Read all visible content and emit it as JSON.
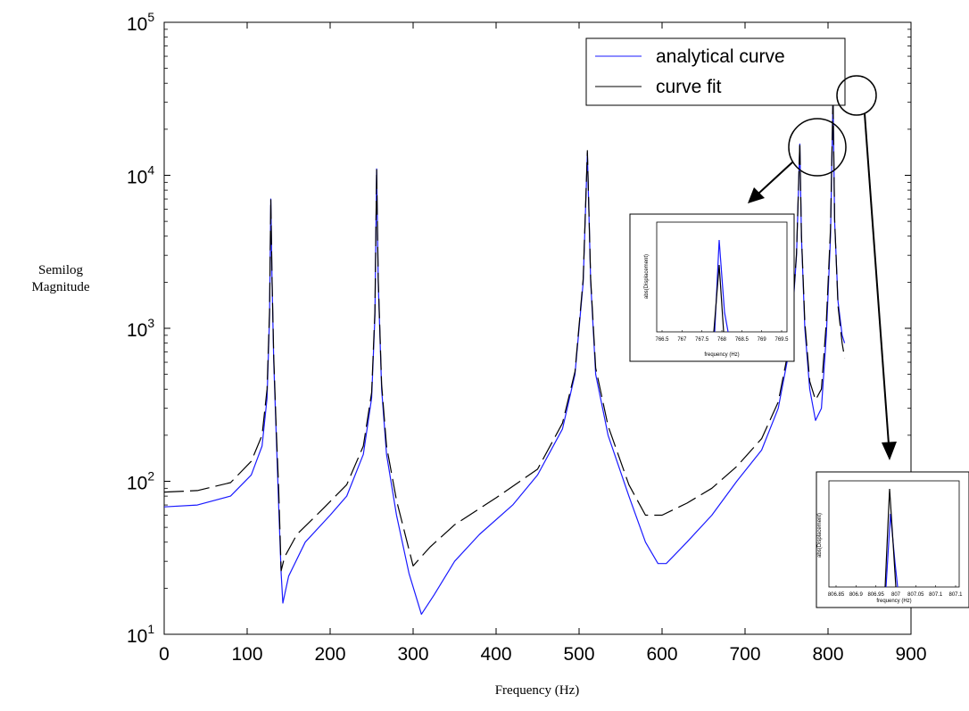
{
  "chart_data": {
    "type": "line",
    "title": "",
    "xlabel": "Frequency (Hz)",
    "ylabel_lines": [
      "Semilog",
      "Magnitude"
    ],
    "yscale": "log",
    "xlim": [
      0,
      900
    ],
    "ylim": [
      10,
      100000
    ],
    "xticks": [
      0,
      100,
      200,
      300,
      400,
      500,
      600,
      700,
      800,
      900
    ],
    "yticks": [
      {
        "base": "10",
        "exp": "1",
        "value": 10
      },
      {
        "base": "10",
        "exp": "2",
        "value": 100
      },
      {
        "base": "10",
        "exp": "3",
        "value": 1000
      },
      {
        "base": "10",
        "exp": "4",
        "value": 10000
      },
      {
        "base": "10",
        "exp": "5",
        "value": 100000
      }
    ],
    "grid": false,
    "legend_position": "top-right",
    "series": [
      {
        "name": "analytical curve",
        "color": "#1a1aff",
        "style": "solid",
        "points": [
          [
            0,
            68
          ],
          [
            40,
            70
          ],
          [
            80,
            80
          ],
          [
            105,
            110
          ],
          [
            118,
            170
          ],
          [
            124,
            350
          ],
          [
            127,
            1200
          ],
          [
            128.5,
            7000
          ],
          [
            130,
            2000
          ],
          [
            132,
            600
          ],
          [
            135,
            200
          ],
          [
            138,
            70
          ],
          [
            141,
            25
          ],
          [
            143,
            16
          ],
          [
            150,
            24
          ],
          [
            170,
            40
          ],
          [
            200,
            60
          ],
          [
            220,
            80
          ],
          [
            240,
            150
          ],
          [
            250,
            350
          ],
          [
            254,
            1200
          ],
          [
            256,
            11000
          ],
          [
            258,
            2000
          ],
          [
            262,
            400
          ],
          [
            268,
            150
          ],
          [
            280,
            60
          ],
          [
            295,
            25
          ],
          [
            310,
            13.5
          ],
          [
            325,
            18
          ],
          [
            350,
            30
          ],
          [
            380,
            45
          ],
          [
            420,
            70
          ],
          [
            450,
            110
          ],
          [
            480,
            220
          ],
          [
            495,
            500
          ],
          [
            505,
            2000
          ],
          [
            510,
            14000
          ],
          [
            514,
            2000
          ],
          [
            520,
            500
          ],
          [
            535,
            200
          ],
          [
            560,
            80
          ],
          [
            580,
            40
          ],
          [
            595,
            29
          ],
          [
            605,
            29
          ],
          [
            630,
            40
          ],
          [
            660,
            60
          ],
          [
            690,
            100
          ],
          [
            720,
            160
          ],
          [
            740,
            300
          ],
          [
            755,
            800
          ],
          [
            762,
            3000
          ],
          [
            766,
            16000
          ],
          [
            768,
            4000
          ],
          [
            772,
            1000
          ],
          [
            778,
            400
          ],
          [
            785,
            250
          ],
          [
            792,
            300
          ],
          [
            798,
            900
          ],
          [
            803,
            4000
          ],
          [
            806,
            32000
          ],
          [
            808,
            5000
          ],
          [
            812,
            1500
          ],
          [
            817,
            900
          ],
          [
            820,
            800
          ]
        ]
      },
      {
        "name": "curve fit",
        "color": "#000000",
        "style": "dashed",
        "points": [
          [
            0,
            85
          ],
          [
            40,
            87
          ],
          [
            80,
            98
          ],
          [
            105,
            135
          ],
          [
            118,
            200
          ],
          [
            124,
            400
          ],
          [
            127,
            1300
          ],
          [
            128.5,
            7000
          ],
          [
            130,
            2100
          ],
          [
            132,
            650
          ],
          [
            135,
            220
          ],
          [
            138,
            90
          ],
          [
            141,
            26
          ],
          [
            145,
            32
          ],
          [
            160,
            45
          ],
          [
            190,
            65
          ],
          [
            220,
            95
          ],
          [
            240,
            170
          ],
          [
            250,
            380
          ],
          [
            254,
            1300
          ],
          [
            256,
            11000
          ],
          [
            258,
            2100
          ],
          [
            262,
            430
          ],
          [
            268,
            170
          ],
          [
            280,
            75
          ],
          [
            300,
            28
          ],
          [
            320,
            37
          ],
          [
            350,
            52
          ],
          [
            400,
            78
          ],
          [
            450,
            120
          ],
          [
            480,
            240
          ],
          [
            495,
            520
          ],
          [
            505,
            2100
          ],
          [
            510,
            14500
          ],
          [
            514,
            2100
          ],
          [
            520,
            550
          ],
          [
            535,
            230
          ],
          [
            560,
            95
          ],
          [
            580,
            60
          ],
          [
            600,
            60
          ],
          [
            630,
            72
          ],
          [
            660,
            90
          ],
          [
            690,
            125
          ],
          [
            720,
            190
          ],
          [
            740,
            330
          ],
          [
            755,
            850
          ],
          [
            762,
            3100
          ],
          [
            766,
            16500
          ],
          [
            768,
            4100
          ],
          [
            772,
            1100
          ],
          [
            778,
            450
          ],
          [
            785,
            340
          ],
          [
            792,
            400
          ],
          [
            798,
            1100
          ],
          [
            803,
            4500
          ],
          [
            806,
            34000
          ],
          [
            808,
            5200
          ],
          [
            812,
            1400
          ],
          [
            817,
            800
          ],
          [
            820,
            640
          ]
        ]
      }
    ],
    "insets": [
      {
        "xlabel": "frequency (Hz)",
        "ylabel": "abs(Displacement)",
        "xticks": [
          "766.5",
          "767",
          "767.5",
          "768",
          "768.5",
          "769",
          "769.5"
        ]
      },
      {
        "xlabel": "frequency (Hz)",
        "ylabel": "abs(Displacement)",
        "xticks": [
          "806.85",
          "806.9",
          "806.95",
          "807",
          "807.05",
          "807.1",
          "807.1"
        ]
      }
    ]
  }
}
